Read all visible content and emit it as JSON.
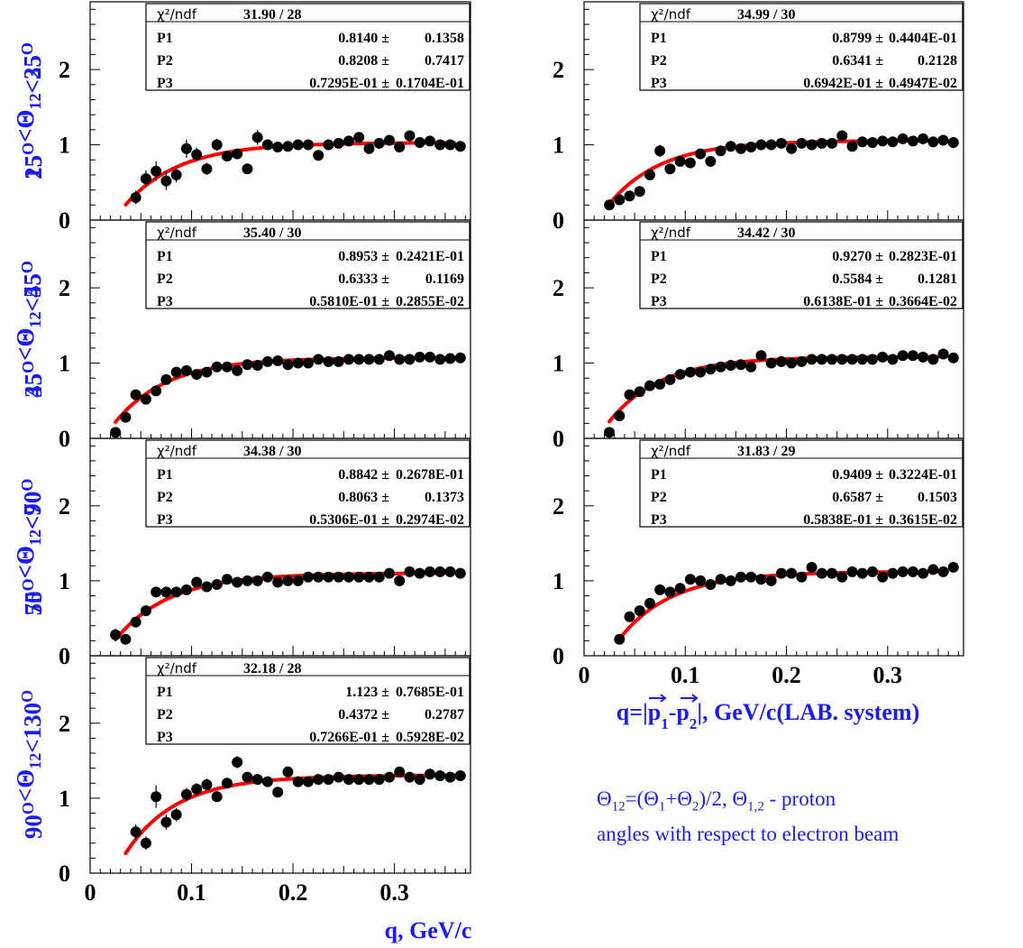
{
  "chart_data": [
    {
      "type": "scatter",
      "ylabel": "15<sup>O</sup>&lt;&Theta;<sub>12</sub>&lt;25<sup>O</sup>",
      "xlim": [
        0,
        0.375
      ],
      "ylim": [
        0,
        2.9
      ],
      "xticks": [
        "0",
        "0.1",
        "0.2",
        "0.3"
      ],
      "yticks": [
        "0",
        "1",
        "2"
      ],
      "fit_stats": {
        "chi2_label": "χ²/ndf",
        "chi2": "31.90",
        "ndf": "28",
        "params": [
          {
            "name": "P1",
            "value": "0.8140",
            "error": "0.1358"
          },
          {
            "name": "P2",
            "value": "0.8208",
            "error": "0.7417"
          },
          {
            "name": "P3",
            "value": "0.7295E-01",
            "error": "0.1704E-01"
          }
        ]
      },
      "x": [
        0.045,
        0.055,
        0.065,
        0.075,
        0.085,
        0.095,
        0.105,
        0.115,
        0.125,
        0.135,
        0.145,
        0.155,
        0.165,
        0.175,
        0.185,
        0.195,
        0.205,
        0.215,
        0.225,
        0.235,
        0.245,
        0.255,
        0.265,
        0.275,
        0.285,
        0.295,
        0.305,
        0.315,
        0.325,
        0.335,
        0.345,
        0.355,
        0.365
      ],
      "y": [
        0.3,
        0.55,
        0.65,
        0.52,
        0.6,
        0.95,
        0.87,
        0.68,
        1.0,
        0.85,
        0.88,
        0.68,
        1.1,
        1.0,
        0.97,
        0.98,
        1.0,
        1.0,
        0.86,
        1.0,
        1.02,
        1.05,
        1.1,
        0.95,
        1.02,
        1.06,
        0.97,
        1.12,
        1.03,
        1.05,
        1.0,
        1.0,
        0.98
      ],
      "err": [
        0.09,
        0.11,
        0.13,
        0.12,
        0.1,
        0.12,
        0.09,
        0.08,
        0.08,
        0.07,
        0.07,
        0.06,
        0.1,
        0.05,
        0.05,
        0.05,
        0.05,
        0.05,
        0.04,
        0.04,
        0.04,
        0.04,
        0.04,
        0.04,
        0.04,
        0.04,
        0.04,
        0.04,
        0.04,
        0.04,
        0.04,
        0.04,
        0.04
      ],
      "fit": {
        "x0": 0.035,
        "x1": 0.36
      }
    },
    {
      "type": "scatter",
      "ylabel": "25<sup>O</sup>&lt;&Theta;<sub>12</sub>&lt;35<sup>O</sup>",
      "xlim": [
        0,
        0.375
      ],
      "ylim": [
        0,
        2.9
      ],
      "xticks": [
        "0",
        "0.1",
        "0.2",
        "0.3"
      ],
      "yticks": [
        "0",
        "1",
        "2"
      ],
      "fit_stats": {
        "chi2_label": "χ²/ndf",
        "chi2": "34.99",
        "ndf": "30",
        "params": [
          {
            "name": "P1",
            "value": "0.8799",
            "error": "0.4404E-01"
          },
          {
            "name": "P2",
            "value": "0.6341",
            "error": "0.2128"
          },
          {
            "name": "P3",
            "value": "0.6942E-01",
            "error": "0.4947E-02"
          }
        ]
      },
      "x": [
        0.025,
        0.035,
        0.045,
        0.055,
        0.065,
        0.075,
        0.085,
        0.095,
        0.105,
        0.115,
        0.125,
        0.135,
        0.145,
        0.155,
        0.165,
        0.175,
        0.185,
        0.195,
        0.205,
        0.215,
        0.225,
        0.235,
        0.245,
        0.255,
        0.265,
        0.275,
        0.285,
        0.295,
        0.305,
        0.315,
        0.325,
        0.335,
        0.345,
        0.355,
        0.365
      ],
      "y": [
        0.2,
        0.27,
        0.32,
        0.38,
        0.6,
        0.92,
        0.68,
        0.78,
        0.76,
        0.88,
        0.78,
        0.92,
        0.98,
        0.95,
        0.97,
        1.0,
        1.0,
        1.02,
        0.95,
        1.02,
        1.0,
        1.02,
        1.02,
        1.12,
        0.98,
        1.04,
        1.03,
        1.05,
        1.04,
        1.08,
        1.05,
        1.08,
        1.04,
        1.06,
        1.03
      ],
      "err": [
        0.04,
        0.04,
        0.05,
        0.05,
        0.06,
        0.08,
        0.05,
        0.05,
        0.05,
        0.04,
        0.04,
        0.04,
        0.04,
        0.04,
        0.04,
        0.04,
        0.04,
        0.04,
        0.04,
        0.04,
        0.04,
        0.04,
        0.04,
        0.04,
        0.04,
        0.04,
        0.04,
        0.04,
        0.04,
        0.04,
        0.04,
        0.04,
        0.04,
        0.04,
        0.04
      ],
      "fit": {
        "x0": 0.025,
        "x1": 0.36
      }
    },
    {
      "type": "scatter",
      "ylabel": "35<sup>O</sup>&lt;&Theta;<sub>12</sub>&lt;45<sup>O</sup>",
      "xlim": [
        0,
        0.375
      ],
      "ylim": [
        0,
        2.9
      ],
      "xticks": [
        "0",
        "0.1",
        "0.2",
        "0.3"
      ],
      "yticks": [
        "0",
        "1",
        "2"
      ],
      "fit_stats": {
        "chi2_label": "χ²/ndf",
        "chi2": "35.40",
        "ndf": "30",
        "params": [
          {
            "name": "P1",
            "value": "0.8953",
            "error": "0.2421E-01"
          },
          {
            "name": "P2",
            "value": "0.6333",
            "error": "0.1169"
          },
          {
            "name": "P3",
            "value": "0.5810E-01",
            "error": "0.2855E-02"
          }
        ]
      },
      "x": [
        0.025,
        0.035,
        0.045,
        0.055,
        0.065,
        0.075,
        0.085,
        0.095,
        0.105,
        0.115,
        0.125,
        0.135,
        0.145,
        0.155,
        0.165,
        0.175,
        0.185,
        0.195,
        0.205,
        0.215,
        0.225,
        0.235,
        0.245,
        0.255,
        0.265,
        0.275,
        0.285,
        0.295,
        0.305,
        0.315,
        0.325,
        0.335,
        0.345,
        0.355,
        0.365
      ],
      "y": [
        0.08,
        0.28,
        0.58,
        0.52,
        0.63,
        0.78,
        0.88,
        0.9,
        0.85,
        0.88,
        0.95,
        0.95,
        0.9,
        0.98,
        0.97,
        1.02,
        1.03,
        0.98,
        1.0,
        1.0,
        1.05,
        1.02,
        1.02,
        1.05,
        1.05,
        1.05,
        1.05,
        1.1,
        1.05,
        1.05,
        1.08,
        1.08,
        1.05,
        1.06,
        1.07
      ],
      "err": [
        0.03,
        0.03,
        0.04,
        0.04,
        0.04,
        0.04,
        0.04,
        0.03,
        0.03,
        0.03,
        0.03,
        0.03,
        0.03,
        0.03,
        0.03,
        0.03,
        0.03,
        0.03,
        0.03,
        0.03,
        0.03,
        0.03,
        0.03,
        0.03,
        0.03,
        0.03,
        0.03,
        0.03,
        0.03,
        0.03,
        0.03,
        0.03,
        0.03,
        0.03,
        0.03
      ],
      "fit": {
        "x0": 0.025,
        "x1": 0.36
      }
    },
    {
      "type": "scatter",
      "ylabel": "45<sup>O</sup>&lt;&Theta;<sub>12</sub>&lt;55<sup>O</sup>",
      "xlim": [
        0,
        0.375
      ],
      "ylim": [
        0,
        2.9
      ],
      "xticks": [
        "0",
        "0.1",
        "0.2",
        "0.3"
      ],
      "yticks": [
        "0",
        "1",
        "2"
      ],
      "fit_stats": {
        "chi2_label": "χ²/ndf",
        "chi2": "34.42",
        "ndf": "30",
        "params": [
          {
            "name": "P1",
            "value": "0.9270",
            "error": "0.2823E-01"
          },
          {
            "name": "P2",
            "value": "0.5584",
            "error": "0.1281"
          },
          {
            "name": "P3",
            "value": "0.6138E-01",
            "error": "0.3664E-02"
          }
        ]
      },
      "x": [
        0.025,
        0.035,
        0.045,
        0.055,
        0.065,
        0.075,
        0.085,
        0.095,
        0.105,
        0.115,
        0.125,
        0.135,
        0.145,
        0.155,
        0.165,
        0.175,
        0.185,
        0.195,
        0.205,
        0.215,
        0.225,
        0.235,
        0.245,
        0.255,
        0.265,
        0.275,
        0.285,
        0.295,
        0.305,
        0.315,
        0.325,
        0.335,
        0.345,
        0.355,
        0.365
      ],
      "y": [
        0.08,
        0.3,
        0.58,
        0.62,
        0.7,
        0.72,
        0.78,
        0.85,
        0.88,
        0.88,
        0.92,
        0.95,
        0.97,
        0.98,
        0.95,
        1.1,
        1.0,
        1.02,
        1.0,
        1.02,
        1.05,
        1.05,
        1.05,
        1.05,
        1.05,
        1.05,
        1.05,
        1.08,
        1.05,
        1.1,
        1.1,
        1.08,
        1.05,
        1.12,
        1.07
      ],
      "err": [
        0.03,
        0.03,
        0.04,
        0.04,
        0.04,
        0.04,
        0.04,
        0.03,
        0.03,
        0.03,
        0.03,
        0.03,
        0.03,
        0.03,
        0.03,
        0.03,
        0.03,
        0.03,
        0.03,
        0.03,
        0.03,
        0.03,
        0.03,
        0.03,
        0.03,
        0.03,
        0.03,
        0.03,
        0.03,
        0.03,
        0.03,
        0.03,
        0.03,
        0.03,
        0.03
      ],
      "fit": {
        "x0": 0.025,
        "x1": 0.36
      }
    },
    {
      "type": "scatter",
      "ylabel": "55<sup>O</sup>&lt;&Theta;<sub>12</sub>&lt;70<sup>O</sup>",
      "xlim": [
        0,
        0.375
      ],
      "ylim": [
        0,
        2.9
      ],
      "xticks": [
        "0",
        "0.1",
        "0.2",
        "0.3"
      ],
      "yticks": [
        "0",
        "1",
        "2"
      ],
      "fit_stats": {
        "chi2_label": "χ²/ndf",
        "chi2": "34.38",
        "ndf": "30",
        "params": [
          {
            "name": "P1",
            "value": "0.8842",
            "error": "0.2678E-01"
          },
          {
            "name": "P2",
            "value": "0.8063",
            "error": "0.1373"
          },
          {
            "name": "P3",
            "value": "0.5306E-01",
            "error": "0.2974E-02"
          }
        ]
      },
      "x": [
        0.025,
        0.035,
        0.045,
        0.055,
        0.065,
        0.075,
        0.085,
        0.095,
        0.105,
        0.115,
        0.125,
        0.135,
        0.145,
        0.155,
        0.165,
        0.175,
        0.185,
        0.195,
        0.205,
        0.215,
        0.225,
        0.235,
        0.245,
        0.255,
        0.265,
        0.275,
        0.285,
        0.295,
        0.305,
        0.315,
        0.325,
        0.335,
        0.345,
        0.355,
        0.365
      ],
      "y": [
        0.28,
        0.22,
        0.45,
        0.6,
        0.85,
        0.85,
        0.85,
        0.88,
        0.98,
        0.92,
        0.95,
        1.02,
        0.98,
        1.0,
        1.0,
        1.05,
        0.98,
        1.0,
        1.0,
        1.05,
        1.05,
        1.05,
        1.05,
        1.05,
        1.05,
        1.05,
        1.05,
        1.1,
        1.0,
        1.12,
        1.1,
        1.12,
        1.12,
        1.12,
        1.1
      ],
      "err": [
        0.08,
        0.05,
        0.05,
        0.05,
        0.05,
        0.04,
        0.04,
        0.04,
        0.04,
        0.04,
        0.04,
        0.04,
        0.04,
        0.04,
        0.04,
        0.04,
        0.04,
        0.04,
        0.04,
        0.04,
        0.04,
        0.04,
        0.04,
        0.04,
        0.04,
        0.04,
        0.04,
        0.04,
        0.04,
        0.04,
        0.04,
        0.04,
        0.04,
        0.04,
        0.04
      ],
      "fit": {
        "x0": 0.025,
        "x1": 0.36
      }
    },
    {
      "type": "scatter",
      "ylabel": "70<sup>O</sup>&lt;&Theta;<sub>12</sub>&lt;90<sup>O</sup>",
      "xlim": [
        0,
        0.375
      ],
      "ylim": [
        0,
        2.9
      ],
      "xticks": [
        "0",
        "0.1",
        "0.2",
        "0.3"
      ],
      "yticks": [
        "0",
        "1",
        "2"
      ],
      "fit_stats": {
        "chi2_label": "χ²/ndf",
        "chi2": "31.83",
        "ndf": "29",
        "params": [
          {
            "name": "P1",
            "value": "0.9409",
            "error": "0.3224E-01"
          },
          {
            "name": "P2",
            "value": "0.6587",
            "error": "0.1503"
          },
          {
            "name": "P3",
            "value": "0.5838E-01",
            "error": "0.3615E-02"
          }
        ]
      },
      "x": [
        0.035,
        0.045,
        0.055,
        0.065,
        0.075,
        0.085,
        0.095,
        0.105,
        0.115,
        0.125,
        0.135,
        0.145,
        0.155,
        0.165,
        0.175,
        0.185,
        0.195,
        0.205,
        0.215,
        0.225,
        0.235,
        0.245,
        0.255,
        0.265,
        0.275,
        0.285,
        0.295,
        0.305,
        0.315,
        0.325,
        0.335,
        0.345,
        0.355,
        0.365
      ],
      "y": [
        0.22,
        0.52,
        0.6,
        0.7,
        0.88,
        0.85,
        0.9,
        1.02,
        1.0,
        0.95,
        1.02,
        1.0,
        1.05,
        1.05,
        1.02,
        1.0,
        1.1,
        1.1,
        1.05,
        1.18,
        1.1,
        1.1,
        1.05,
        1.12,
        1.1,
        1.12,
        1.05,
        1.1,
        1.12,
        1.12,
        1.1,
        1.15,
        1.12,
        1.18
      ],
      "err": [
        0.04,
        0.05,
        0.05,
        0.05,
        0.05,
        0.04,
        0.04,
        0.04,
        0.04,
        0.04,
        0.04,
        0.04,
        0.04,
        0.04,
        0.04,
        0.04,
        0.04,
        0.04,
        0.04,
        0.04,
        0.04,
        0.04,
        0.04,
        0.04,
        0.04,
        0.04,
        0.04,
        0.04,
        0.04,
        0.04,
        0.04,
        0.04,
        0.04,
        0.04
      ],
      "fit": {
        "x0": 0.035,
        "x1": 0.36
      }
    },
    {
      "type": "scatter",
      "ylabel": "90<sup>O</sup>&lt;&Theta;<sub>12</sub>&lt;130<sup>O</sup>",
      "xlim": [
        0,
        0.375
      ],
      "ylim": [
        0,
        2.9
      ],
      "xticks": [
        "0",
        "0.1",
        "0.2",
        "0.3"
      ],
      "yticks": [
        "0",
        "1",
        "2"
      ],
      "fit_stats": {
        "chi2_label": "χ²/ndf",
        "chi2": "32.18",
        "ndf": "28",
        "params": [
          {
            "name": "P1",
            "value": "1.123",
            "error": "0.7685E-01"
          },
          {
            "name": "P2",
            "value": "0.4372",
            "error": "0.2787"
          },
          {
            "name": "P3",
            "value": "0.7266E-01",
            "error": "0.5928E-02"
          }
        ]
      },
      "x": [
        0.045,
        0.055,
        0.065,
        0.075,
        0.085,
        0.095,
        0.105,
        0.115,
        0.125,
        0.135,
        0.145,
        0.155,
        0.165,
        0.175,
        0.185,
        0.195,
        0.205,
        0.215,
        0.225,
        0.235,
        0.245,
        0.255,
        0.265,
        0.275,
        0.285,
        0.295,
        0.305,
        0.315,
        0.325,
        0.335,
        0.345,
        0.355,
        0.365
      ],
      "y": [
        0.55,
        0.4,
        1.02,
        0.68,
        0.78,
        1.05,
        1.12,
        1.18,
        1.02,
        1.2,
        1.48,
        1.28,
        1.25,
        1.22,
        1.08,
        1.35,
        1.22,
        1.22,
        1.25,
        1.25,
        1.28,
        1.25,
        1.25,
        1.25,
        1.25,
        1.28,
        1.35,
        1.28,
        1.25,
        1.32,
        1.3,
        1.28,
        1.3
      ],
      "err": [
        0.1,
        0.09,
        0.15,
        0.1,
        0.09,
        0.09,
        0.08,
        0.08,
        0.07,
        0.07,
        0.08,
        0.06,
        0.06,
        0.05,
        0.05,
        0.05,
        0.05,
        0.05,
        0.05,
        0.05,
        0.05,
        0.05,
        0.05,
        0.05,
        0.05,
        0.05,
        0.05,
        0.05,
        0.05,
        0.05,
        0.05,
        0.05,
        0.05
      ],
      "fit": {
        "x0": 0.035,
        "x1": 0.36
      }
    }
  ],
  "axis_titles": {
    "right_xlabel": "q=|p<tspan baseline-shift=\"sub\" font-size=\"17\">1</tspan>-p<tspan baseline-shift=\"sub\" font-size=\"17\">2</tspan>|, GeV/c(LAB. system)",
    "left_xlabel": "q, GeV/c"
  },
  "note": {
    "line1": "Θ<sub>12</sub>=(Θ<sub>1</sub>+Θ<sub>2</sub>)/2, Θ<sub>1,2</sub> - proton",
    "line2": "angles with respect to electron beam"
  },
  "colors": {
    "fit_curve": "#ff0000",
    "label_blue": "#1c1cf0",
    "points": "#000000"
  }
}
